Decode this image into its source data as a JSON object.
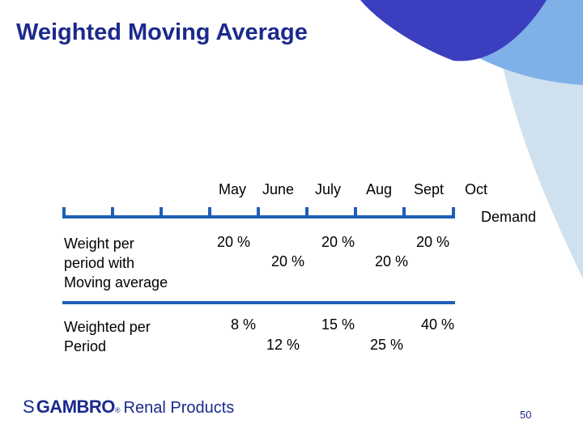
{
  "title": "Weighted Moving Average",
  "months": [
    "May",
    "June",
    "July",
    "Aug",
    "Sept",
    "Oct"
  ],
  "demand_label": "Demand",
  "weight_row": {
    "label": "Weight per\nperiod with\nMoving average",
    "values": [
      "20 %",
      "20 %",
      "20 %",
      "20 %",
      "20 %"
    ]
  },
  "weighted_row": {
    "label": "Weighted per\nPeriod",
    "values": [
      "8 %",
      "12 %",
      "15 %",
      "25 %",
      "40 %"
    ]
  },
  "logo": {
    "mark": "S",
    "brand": "GAMBRO",
    "registered": "®",
    "sub": "Renal Products"
  },
  "page_number": "50",
  "colors": {
    "title": "#1b2a8c",
    "line": "#1f5fb8",
    "deco_dark": "#3b3fbf",
    "deco_mid": "#7fb0e8",
    "deco_light": "#cfe1ee"
  }
}
